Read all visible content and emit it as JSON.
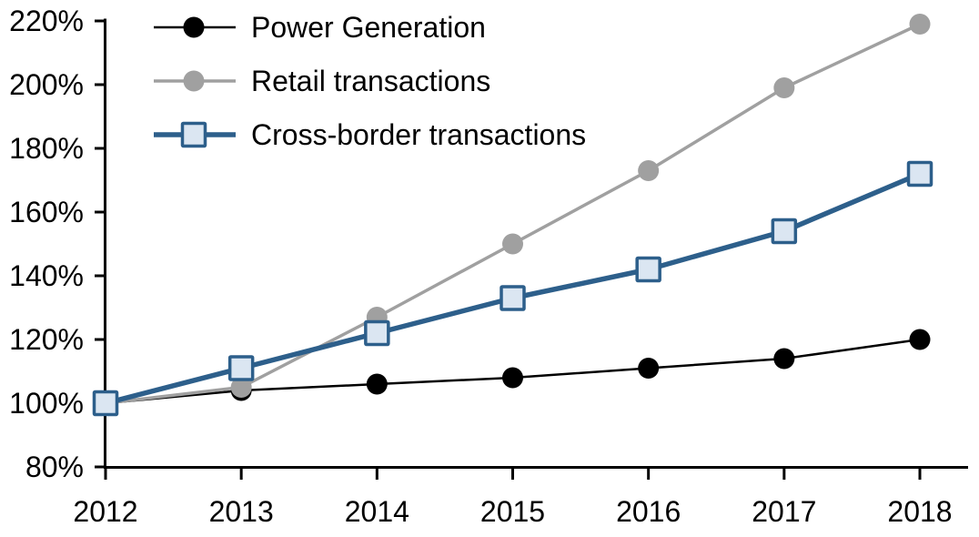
{
  "chart_data": {
    "type": "line",
    "title": "",
    "xlabel": "",
    "ylabel": "",
    "categories": [
      "2012",
      "2013",
      "2014",
      "2015",
      "2016",
      "2017",
      "2018"
    ],
    "series": [
      {
        "name": "Power Generation",
        "values": [
          100,
          104,
          106,
          108,
          111,
          114,
          120
        ],
        "color": "#000000",
        "marker": "circle",
        "marker_fill": "#000000",
        "line_width": 2.5
      },
      {
        "name": "Retail transactions",
        "values": [
          100,
          105,
          127,
          150,
          173,
          199,
          219
        ],
        "color": "#a0a0a0",
        "marker": "circle",
        "marker_fill": "#a0a0a0",
        "line_width": 3.5
      },
      {
        "name": "Cross-border transactions",
        "values": [
          100,
          111,
          122,
          133,
          142,
          154,
          172
        ],
        "color": "#2d5f8b",
        "marker": "square",
        "marker_fill": "#dbe6f2",
        "line_width": 5.5
      }
    ],
    "ylim": [
      80,
      220
    ],
    "ytick_step": 20,
    "ytick_suffix": "%",
    "grid": false,
    "legend_position": "top-left",
    "axis_color": "#000000",
    "background": "#ffffff"
  }
}
